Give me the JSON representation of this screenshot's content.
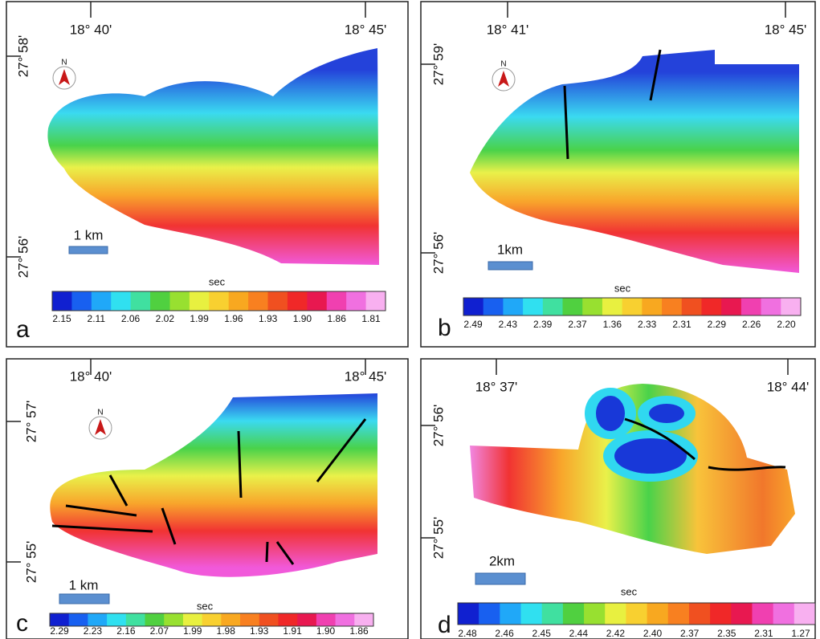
{
  "panels": [
    {
      "letter": "a",
      "north": "N",
      "lon_labels": [
        "18° 40'",
        "18° 45'"
      ],
      "lat_labels": [
        "27° 58'",
        "27° 56'"
      ],
      "scale": "1 km",
      "unit": "sec",
      "colorbar": [
        "2.15",
        "2.11",
        "2.06",
        "2.02",
        "1.99",
        "1.96",
        "1.93",
        "1.90",
        "1.86",
        "1.81"
      ]
    },
    {
      "letter": "b",
      "north": "N",
      "lon_labels": [
        "18° 41'",
        "18° 45'"
      ],
      "lat_labels": [
        "27° 59'",
        "27° 56'"
      ],
      "scale": "1km",
      "unit": "sec",
      "colorbar": [
        "2.49",
        "2.43",
        "2.39",
        "2.37",
        "1.36",
        "2.33",
        "2.31",
        "2.29",
        "2.26",
        "2.20"
      ]
    },
    {
      "letter": "c",
      "north": "N",
      "lon_labels": [
        "18° 40'",
        "18° 45'"
      ],
      "lat_labels": [
        "27° 57'",
        "27° 55'"
      ],
      "scale": "1 km",
      "unit": "sec",
      "colorbar": [
        "2.29",
        "2.23",
        "2.16",
        "2.07",
        "1.99",
        "1.98",
        "1.93",
        "1.91",
        "1.90",
        "1.86"
      ]
    },
    {
      "letter": "d",
      "lon_labels": [
        "18° 37'",
        "18° 44'"
      ],
      "lat_labels": [
        "27° 56'",
        "27° 55'"
      ],
      "scale": "2km",
      "unit": "sec",
      "colorbar": [
        "2.48",
        "2.46",
        "2.45",
        "2.44",
        "2.42",
        "2.40",
        "2.37",
        "2.35",
        "2.31",
        "1.27"
      ]
    }
  ]
}
